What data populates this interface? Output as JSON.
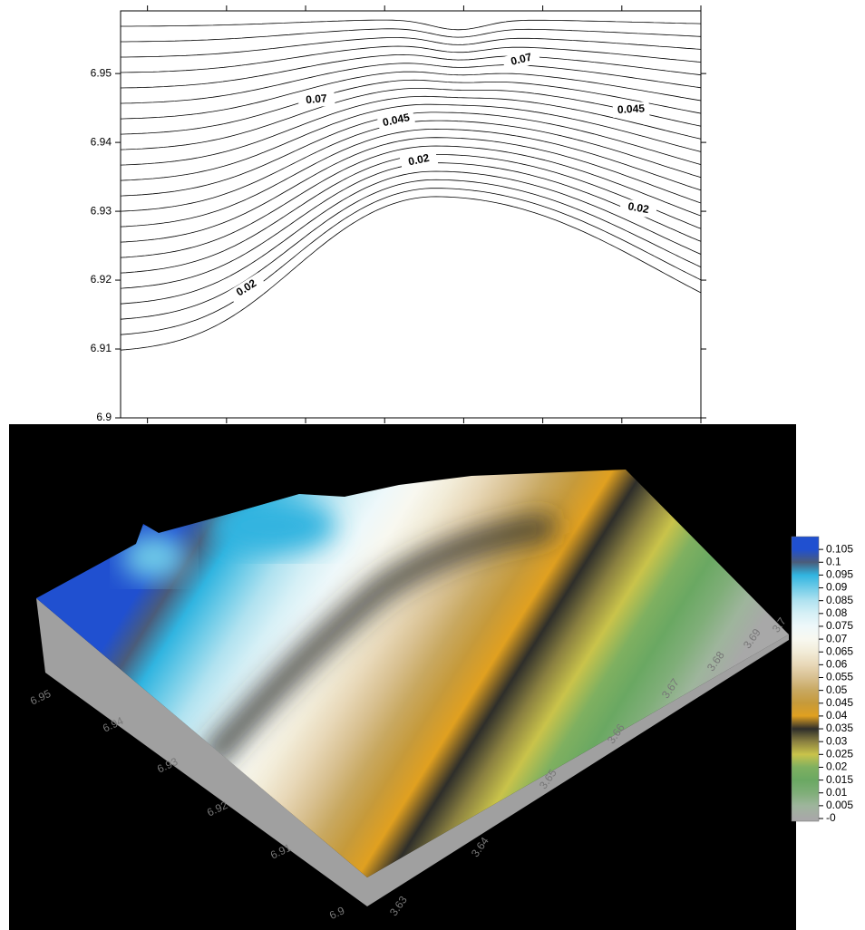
{
  "chart_data": [
    {
      "type": "contour",
      "xlim": [
        3.6266,
        3.7
      ],
      "ylim": [
        6.9,
        6.9591
      ],
      "xticks": [
        3.63,
        3.64,
        3.65,
        3.66,
        3.67,
        3.68,
        3.69,
        3.7
      ],
      "yticks": [
        6.9,
        6.91,
        6.92,
        6.93,
        6.94,
        6.95
      ],
      "contour_labels": [
        0.07,
        0.07,
        0.045,
        0.045,
        0.02,
        0.02,
        0.02
      ],
      "line_color": "#000000"
    },
    {
      "type": "surface",
      "background": "#000000",
      "side_color": "#a0a0a0",
      "colorbar": {
        "lim": [
          0,
          0.11
        ],
        "ticks": [
          {
            "value": 0,
            "label": "-0"
          },
          0.005,
          0.01,
          0.015,
          0.02,
          0.025,
          0.03,
          0.035,
          0.04,
          0.045,
          0.05,
          0.055,
          0.06,
          0.065,
          0.07,
          0.075,
          0.08,
          0.085,
          0.09,
          0.095,
          0.1,
          0.105
        ],
        "colors": [
          "#a8a8a8",
          "#9eb59c",
          "#7fae78",
          "#6aa862",
          "#7fb060",
          "#c9c34a",
          "#8a8040",
          "#2e2e2a",
          "#e0a020",
          "#c69a3a",
          "#c8a860",
          "#d8c090",
          "#e8d8b8",
          "#f2ecd8",
          "#f8f8f0",
          "#eef8fa",
          "#d6f0f6",
          "#b0e2f0",
          "#70cce8",
          "#30b4e0",
          "#4a5c7a",
          "#2050d0"
        ]
      }
    }
  ]
}
